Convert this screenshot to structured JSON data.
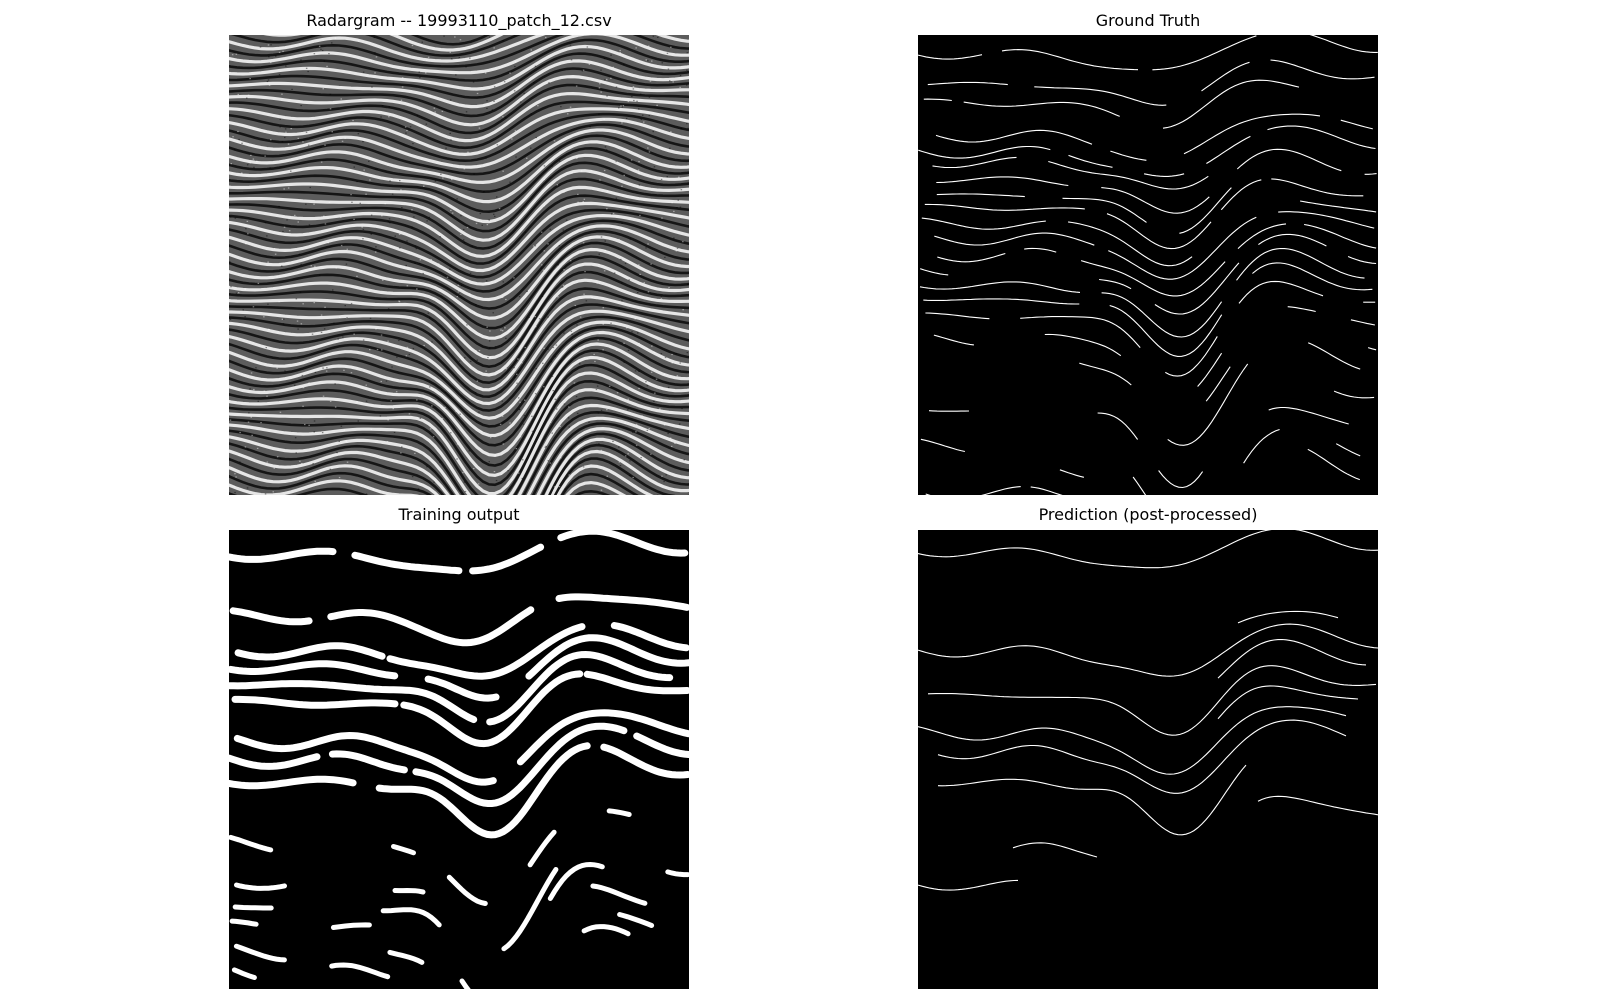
{
  "figure": {
    "panels": [
      {
        "id": "radargram",
        "title": "Radargram -- 19993110_patch_12.csv",
        "kind": "grayscale-radargram"
      },
      {
        "id": "ground-truth",
        "title": "Ground Truth",
        "kind": "thin-white-lines-on-black"
      },
      {
        "id": "training-output",
        "title": "Training output",
        "kind": "thick-white-bands-on-black"
      },
      {
        "id": "prediction",
        "title": "Prediction (post-processed)",
        "kind": "thin-white-lines-on-black"
      }
    ],
    "colors": {
      "background": "#ffffff",
      "panel": "#000000",
      "trace": "#ffffff"
    }
  }
}
